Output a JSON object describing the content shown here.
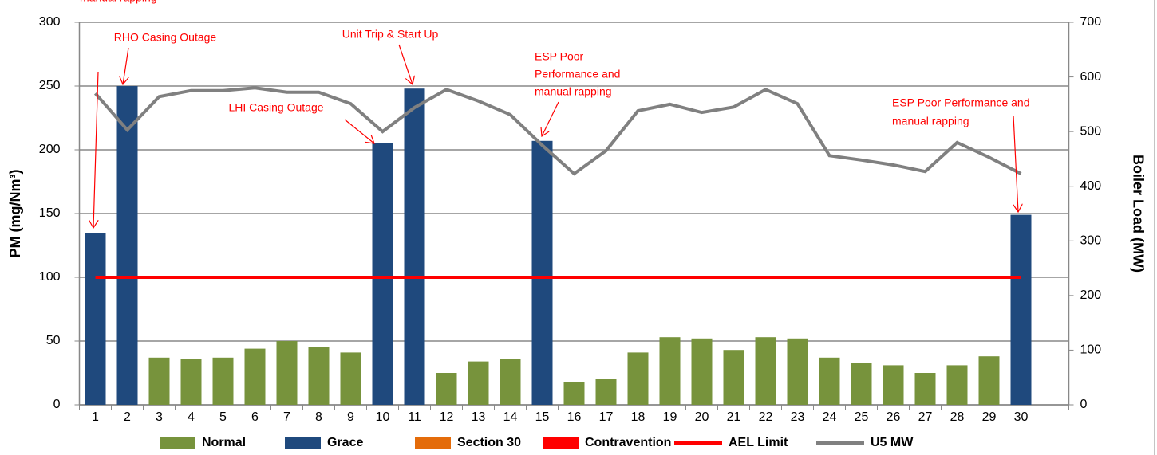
{
  "chart_data": {
    "type": "bar",
    "categories": [
      "1",
      "2",
      "3",
      "4",
      "5",
      "6",
      "7",
      "8",
      "9",
      "10",
      "11",
      "12",
      "13",
      "14",
      "15",
      "16",
      "17",
      "18",
      "19",
      "20",
      "21",
      "22",
      "23",
      "24",
      "25",
      "26",
      "27",
      "28",
      "29",
      "30",
      null
    ],
    "y_label": "PM (mg/Nm³)",
    "y2_label": "Boiler Load (MW)",
    "ylim": [
      0,
      300
    ],
    "yticks": [
      0,
      50,
      100,
      150,
      200,
      250,
      300
    ],
    "y2lim": [
      0,
      700
    ],
    "y2ticks": [
      0,
      100,
      200,
      300,
      400,
      500,
      600,
      700
    ],
    "grid": true,
    "legend": "bottom",
    "series": [
      {
        "name": "Normal",
        "type": "bar",
        "color": "#77933c",
        "values": [
          null,
          null,
          37,
          36,
          37,
          44,
          50,
          45,
          41,
          null,
          null,
          25,
          34,
          36,
          null,
          18,
          20,
          41,
          53,
          52,
          43,
          53,
          52,
          37,
          33,
          31,
          25,
          31,
          38,
          null,
          null
        ]
      },
      {
        "name": "Grace",
        "type": "bar",
        "color": "#1f497d",
        "values": [
          135,
          250,
          null,
          null,
          null,
          null,
          null,
          null,
          null,
          205,
          248,
          null,
          null,
          null,
          207,
          null,
          null,
          null,
          null,
          null,
          null,
          null,
          null,
          null,
          null,
          null,
          null,
          null,
          null,
          149,
          null
        ]
      },
      {
        "name": "Section 30",
        "type": "bar",
        "color": "#e46c0a",
        "values": [
          null,
          null,
          null,
          null,
          null,
          null,
          null,
          null,
          null,
          null,
          null,
          null,
          null,
          null,
          null,
          null,
          null,
          null,
          null,
          null,
          null,
          null,
          null,
          null,
          null,
          null,
          null,
          null,
          null,
          null,
          null
        ]
      },
      {
        "name": "Contravention",
        "type": "bar",
        "color": "#ff0000",
        "values": [
          null,
          null,
          null,
          null,
          null,
          null,
          null,
          null,
          null,
          null,
          null,
          null,
          null,
          null,
          null,
          null,
          null,
          null,
          null,
          null,
          null,
          null,
          null,
          null,
          null,
          null,
          null,
          null,
          null,
          null,
          null
        ]
      },
      {
        "name": "AEL Limit",
        "type": "line",
        "color": "#ff0000",
        "values": [
          100,
          100,
          100,
          100,
          100,
          100,
          100,
          100,
          100,
          100,
          100,
          100,
          100,
          100,
          100,
          100,
          100,
          100,
          100,
          100,
          100,
          100,
          100,
          100,
          100,
          100,
          100,
          100,
          100,
          100,
          null
        ]
      },
      {
        "name": "U5 MW",
        "type": "line",
        "color": "#808080",
        "axis": "y2",
        "values": [
          570,
          503,
          564,
          575,
          575,
          580,
          572,
          572,
          551,
          500,
          544,
          577,
          556,
          531,
          475,
          423,
          465,
          538,
          550,
          535,
          545,
          577,
          551,
          456,
          448,
          439,
          427,
          480,
          453,
          423,
          null
        ]
      }
    ],
    "annotations": [
      [
        "manual rapping"
      ],
      [
        "RHO Casing Outage"
      ],
      [
        "LHI Casing Outage"
      ],
      [
        "Unit Trip & Start Up"
      ],
      [
        "ESP Poor",
        "Performance and",
        "manual rapping"
      ],
      [
        "ESP Poor Performance and",
        "manual rapping"
      ]
    ]
  }
}
